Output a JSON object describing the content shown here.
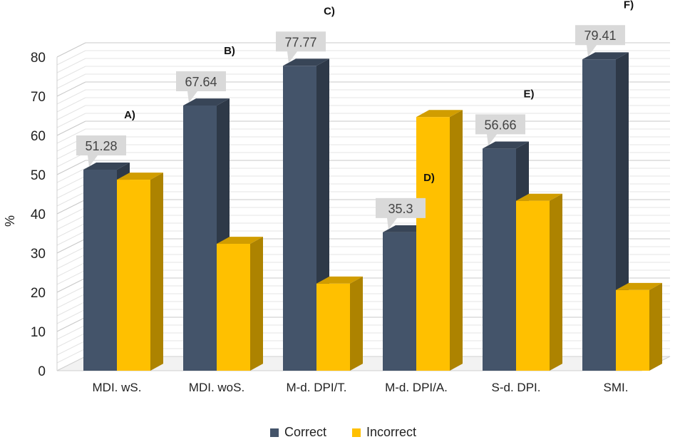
{
  "chart_data": {
    "type": "bar",
    "style": "3d-clustered-column",
    "ylabel": "%",
    "ylim": [
      0,
      80
    ],
    "yticks": [
      "0",
      "10",
      "20",
      "30",
      "40",
      "50",
      "60",
      "70",
      "80"
    ],
    "grid": true,
    "legend_position": "bottom",
    "categories": [
      "MDI. wS.",
      "MDI. woS.",
      "M-d. DPI/T.",
      "M-d. DPI/A.",
      "S-d. DPI.",
      "SMI."
    ],
    "annotations": [
      "A)",
      "B)",
      "C)",
      "D)",
      "E)",
      "F)"
    ],
    "series": [
      {
        "name": "Correct",
        "color": "#44546a",
        "values": [
          51.28,
          67.64,
          77.77,
          35.3,
          56.66,
          79.41
        ],
        "data_labels": [
          "51.28",
          "67.64",
          "77.77",
          "35.3",
          "56.66",
          "79.41"
        ]
      },
      {
        "name": "Incorrect",
        "color": "#ffc000",
        "values": [
          48.72,
          32.36,
          22.23,
          64.7,
          43.34,
          20.59
        ]
      }
    ]
  }
}
